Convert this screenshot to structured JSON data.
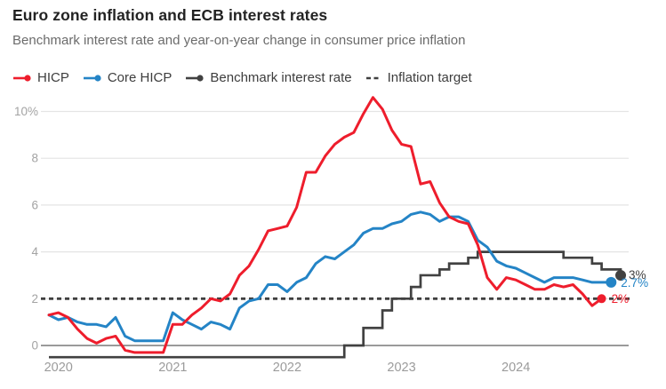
{
  "header": {
    "title": "Euro zone inflation and ECB interest rates",
    "subtitle": "Benchmark interest rate and year-on-year change in consumer price inflation"
  },
  "legend": {
    "items": [
      {
        "label": "HICP",
        "color": "#ee1d2c",
        "marker": "line-dot"
      },
      {
        "label": "Core HICP",
        "color": "#2484c6",
        "marker": "line-dot"
      },
      {
        "label": "Benchmark interest rate",
        "color": "#414141",
        "marker": "line-dot"
      },
      {
        "label": "Inflation target",
        "color": "#3f3f3f",
        "marker": "dashed-line"
      }
    ]
  },
  "chart_data": {
    "type": "line",
    "title": "Euro zone inflation and ECB interest rates",
    "x_unit": "month",
    "x_start": "Dec 2019",
    "x_end": "Dec 2024",
    "x_tick_labels": [
      "2020",
      "2021",
      "2022",
      "2023",
      "2024"
    ],
    "y_ticks": [
      {
        "value": 10,
        "label": "10%"
      },
      {
        "value": 8,
        "label": "8"
      },
      {
        "value": 6,
        "label": "6"
      },
      {
        "value": 4,
        "label": "4"
      },
      {
        "value": 2,
        "label": "2"
      },
      {
        "value": 0,
        "label": "0"
      }
    ],
    "ylim": [
      -0.8,
      10.9
    ],
    "grid": true,
    "legend_position": "top",
    "series": [
      {
        "name": "HICP",
        "type": "line",
        "color": "#ee1d2c",
        "end_label": "2%",
        "values": [
          1.3,
          1.4,
          1.2,
          0.7,
          0.3,
          0.1,
          0.3,
          0.4,
          -0.2,
          -0.3,
          -0.3,
          -0.3,
          -0.3,
          0.9,
          0.9,
          1.3,
          1.6,
          2.0,
          1.9,
          2.2,
          3.0,
          3.4,
          4.1,
          4.9,
          5.0,
          5.1,
          5.9,
          7.4,
          7.4,
          8.1,
          8.6,
          8.9,
          9.1,
          9.9,
          10.6,
          10.1,
          9.2,
          8.6,
          8.5,
          6.9,
          7.0,
          6.1,
          5.5,
          5.3,
          5.2,
          4.3,
          2.9,
          2.4,
          2.9,
          2.8,
          2.6,
          2.4,
          2.4,
          2.6,
          2.5,
          2.6,
          2.2,
          1.7,
          2.0
        ]
      },
      {
        "name": "Core HICP",
        "type": "line",
        "color": "#2484c6",
        "end_label": "2.7%",
        "values": [
          1.3,
          1.1,
          1.2,
          1.0,
          0.9,
          0.9,
          0.8,
          1.2,
          0.4,
          0.2,
          0.2,
          0.2,
          0.2,
          1.4,
          1.1,
          0.9,
          0.7,
          1.0,
          0.9,
          0.7,
          1.6,
          1.9,
          2.0,
          2.6,
          2.6,
          2.3,
          2.7,
          2.9,
          3.5,
          3.8,
          3.7,
          4.0,
          4.3,
          4.8,
          5.0,
          5.0,
          5.2,
          5.3,
          5.6,
          5.7,
          5.6,
          5.3,
          5.5,
          5.5,
          5.3,
          4.5,
          4.2,
          3.6,
          3.4,
          3.3,
          3.1,
          2.9,
          2.7,
          2.9,
          2.9,
          2.9,
          2.8,
          2.7,
          2.7,
          2.7
        ]
      },
      {
        "name": "Benchmark interest rate",
        "type": "step",
        "color": "#414141",
        "end_label": "3%",
        "values": [
          -0.5,
          -0.5,
          -0.5,
          -0.5,
          -0.5,
          -0.5,
          -0.5,
          -0.5,
          -0.5,
          -0.5,
          -0.5,
          -0.5,
          -0.5,
          -0.5,
          -0.5,
          -0.5,
          -0.5,
          -0.5,
          -0.5,
          -0.5,
          -0.5,
          -0.5,
          -0.5,
          -0.5,
          -0.5,
          -0.5,
          -0.5,
          -0.5,
          -0.5,
          -0.5,
          -0.5,
          0,
          0,
          0.75,
          0.75,
          1.5,
          2.0,
          2.0,
          2.5,
          3.0,
          3.0,
          3.25,
          3.5,
          3.5,
          3.75,
          4.0,
          4.0,
          4.0,
          4.0,
          4.0,
          4.0,
          4.0,
          4.0,
          4.0,
          3.75,
          3.75,
          3.75,
          3.5,
          3.25,
          3.25,
          3.0
        ]
      },
      {
        "name": "Inflation target",
        "type": "dashed-constant",
        "color": "#3f3f3f",
        "value": 2
      }
    ]
  }
}
